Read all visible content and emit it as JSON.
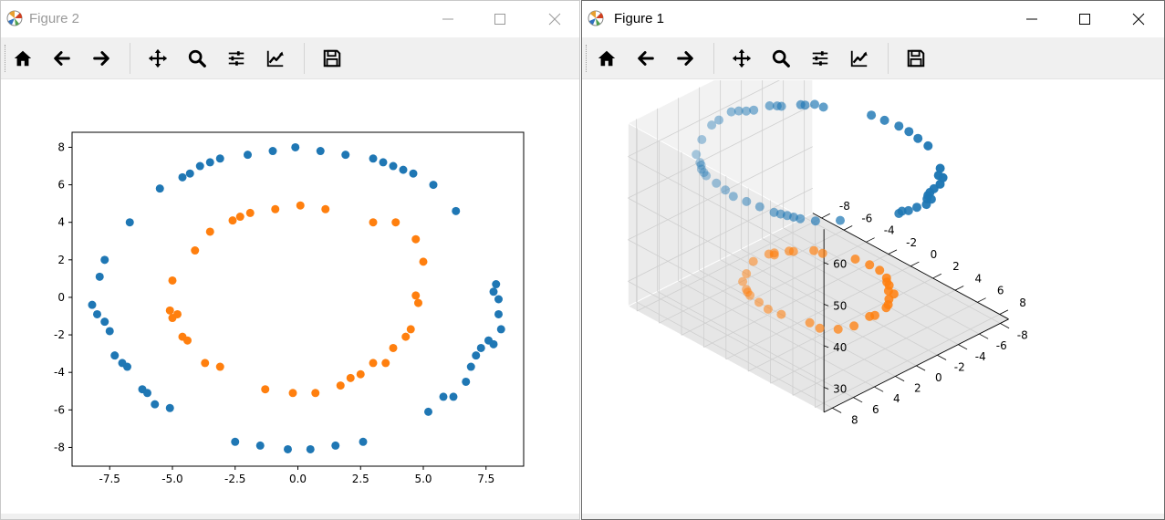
{
  "windows": [
    {
      "title": "Figure 2"
    },
    {
      "title": "Figure 1"
    }
  ],
  "toolbar": {
    "buttons": [
      {
        "icon": "home-icon"
      },
      {
        "icon": "back-arrow-icon"
      },
      {
        "icon": "forward-arrow-icon"
      },
      {
        "icon": "pan-icon"
      },
      {
        "icon": "zoom-icon"
      },
      {
        "icon": "subplots-icon"
      },
      {
        "icon": "edit-axis-icon"
      },
      {
        "icon": "save-icon"
      }
    ]
  },
  "colors": {
    "series_blue": "#1f77b4",
    "series_orange": "#ff7f0e"
  },
  "chart_data": [
    {
      "type": "scatter",
      "window": "Figure 2",
      "title": "",
      "xlabel": "",
      "ylabel": "",
      "xlim": [
        -9.0,
        9.0
      ],
      "ylim": [
        -9.0,
        8.8
      ],
      "grid": false,
      "xticks": [
        "-7.5",
        "-5.0",
        "-2.5",
        "0.0",
        "2.5",
        "5.0",
        "7.5"
      ],
      "xtick_values": [
        -7.5,
        -5.0,
        -2.5,
        0.0,
        2.5,
        5.0,
        7.5
      ],
      "yticks": [
        "-8",
        "-6",
        "-4",
        "-2",
        "0",
        "2",
        "4",
        "6",
        "8"
      ],
      "ytick_values": [
        -8,
        -6,
        -4,
        -2,
        0,
        2,
        4,
        6,
        8
      ],
      "series": [
        {
          "color": "#1f77b4",
          "x": [
            -0.1,
            0.9,
            1.9,
            3.0,
            3.4,
            3.8,
            4.2,
            4.6,
            5.4,
            6.3,
            -1.0,
            -2.0,
            -3.1,
            -3.5,
            -3.9,
            -4.3,
            -4.6,
            -5.5,
            -6.7,
            -7.7,
            -7.9,
            -8.2,
            -8.0,
            -7.7,
            -7.5,
            -7.3,
            -7.0,
            -6.8,
            -6.2,
            -6.0,
            -5.7,
            -5.1,
            -2.5,
            -1.5,
            -0.4,
            0.5,
            1.5,
            2.6,
            5.2,
            5.8,
            6.2,
            6.7,
            6.9,
            7.1,
            7.3,
            7.6,
            7.8,
            7.9,
            7.8,
            8.0,
            8.1,
            8.0
          ],
          "y": [
            8.0,
            7.8,
            7.6,
            7.4,
            7.2,
            7.0,
            6.8,
            6.6,
            6.0,
            4.6,
            7.8,
            7.6,
            7.4,
            7.2,
            7.0,
            6.6,
            6.4,
            5.8,
            4.0,
            2.0,
            1.1,
            -0.4,
            -0.9,
            -1.3,
            -1.8,
            -3.1,
            -3.5,
            -3.7,
            -4.9,
            -5.1,
            -5.7,
            -5.9,
            -7.7,
            -7.9,
            -8.1,
            -8.1,
            -7.9,
            -7.7,
            -6.1,
            -5.3,
            -5.3,
            -4.5,
            -3.7,
            -3.1,
            -2.7,
            -2.3,
            -2.5,
            0.7,
            0.3,
            -0.1,
            -1.7,
            -0.9
          ]
        },
        {
          "color": "#ff7f0e",
          "x": [
            0.1,
            1.1,
            -0.9,
            -1.9,
            -2.3,
            -2.6,
            -3.5,
            -4.1,
            -5.0,
            -5.1,
            -5.0,
            -4.8,
            -4.6,
            -4.4,
            -3.7,
            -3.1,
            -1.3,
            -0.2,
            0.7,
            1.7,
            2.1,
            2.5,
            3.0,
            3.5,
            3.8,
            4.3,
            4.5,
            4.7,
            4.8,
            5.0,
            4.7,
            3.9,
            3.0
          ],
          "y": [
            4.9,
            4.7,
            4.7,
            4.5,
            4.3,
            4.1,
            3.5,
            2.5,
            0.9,
            -0.7,
            -1.1,
            -0.9,
            -2.1,
            -2.3,
            -3.5,
            -3.7,
            -4.9,
            -5.1,
            -5.1,
            -4.7,
            -4.3,
            -4.1,
            -3.5,
            -3.5,
            -2.7,
            -2.1,
            -1.7,
            0.1,
            -0.3,
            1.9,
            3.1,
            4.0,
            4.0
          ]
        }
      ]
    },
    {
      "type": "scatter3d",
      "window": "Figure 1",
      "title": "",
      "xlabel": "",
      "ylabel": "",
      "zlabel": "",
      "grid": true,
      "xticks": [
        "-8",
        "-6",
        "-4",
        "-2",
        "0",
        "2",
        "4",
        "6",
        "8"
      ],
      "yticks": [
        "-8",
        "-6",
        "-4",
        "-2",
        "0",
        "2",
        "4",
        "6",
        "8"
      ],
      "zticks": [
        "30",
        "40",
        "50",
        "60"
      ],
      "zlim": [
        24,
        68
      ],
      "series": [
        {
          "color": "#1f77b4",
          "z_level": 60
        },
        {
          "color": "#ff7f0e",
          "z_level": 30
        }
      ]
    }
  ]
}
